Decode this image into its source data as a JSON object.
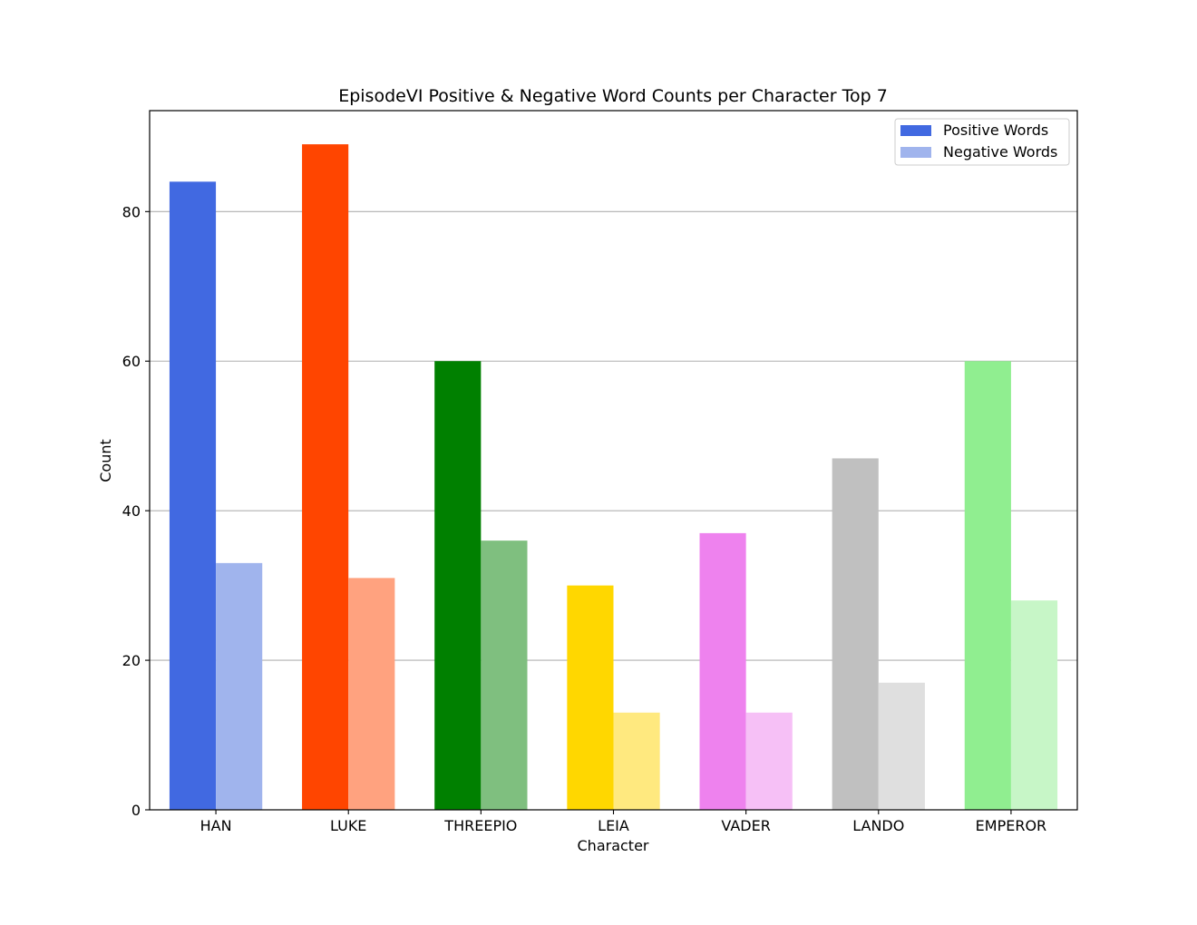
{
  "chart_data": {
    "type": "bar",
    "title": "EpisodeVI Positive & Negative Word Counts per Character Top 7",
    "xlabel": "Character",
    "ylabel": "Count",
    "ylim": [
      0,
      93.5
    ],
    "yticks": [
      0,
      20,
      40,
      60,
      80
    ],
    "grid": "y-major",
    "legend_position": "top-right",
    "categories": [
      "HAN",
      "LUKE",
      "THREEPIO",
      "LEIA",
      "VADER",
      "LANDO",
      "EMPEROR"
    ],
    "series": [
      {
        "name": "Positive Words",
        "values": [
          84,
          89,
          60,
          30,
          37,
          47,
          60
        ],
        "colors": [
          "#4169e1",
          "#ff4500",
          "#008000",
          "#ffd700",
          "#ee82ee",
          "#c0c0c0",
          "#90ee90"
        ],
        "legend_color": "#4169e1"
      },
      {
        "name": "Negative Words",
        "values": [
          33,
          31,
          36,
          13,
          13,
          17,
          28
        ],
        "colors": [
          "#a0b4ed",
          "#ffa27f",
          "#7fbf7f",
          "#ffe97f",
          "#f6c0f6",
          "#dfdfdf",
          "#c7f6c7"
        ],
        "legend_color": "#a0b4ed"
      }
    ]
  }
}
